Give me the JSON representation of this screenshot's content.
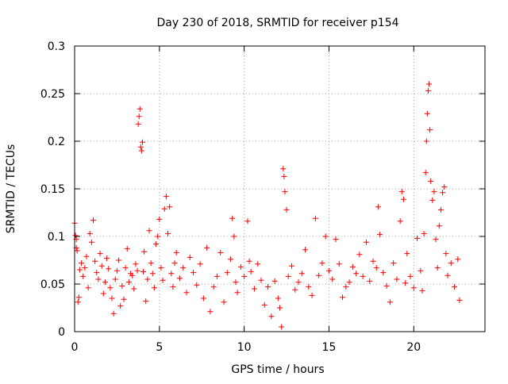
{
  "chart_data": {
    "type": "scatter",
    "title": "Day 230 of 2018, SRMTID for receiver p154",
    "xlabel": "GPS time / hours",
    "ylabel": "SRMTID / TECUs",
    "xlim": [
      0,
      24.2
    ],
    "ylim": [
      0,
      0.3
    ],
    "xticks": [
      0,
      5,
      10,
      15,
      20
    ],
    "xtick_labels": [
      "0",
      "5",
      "10",
      "15",
      "20"
    ],
    "yticks": [
      0,
      0.05,
      0.1,
      0.15,
      0.2,
      0.25,
      0.3
    ],
    "ytick_labels": [
      "0",
      "0.05",
      "0.1",
      "0.15",
      "0.2",
      "0.25",
      "0.3"
    ],
    "grid": true,
    "marker": "+",
    "series_color": "#ff0000",
    "series": [
      {
        "name": "SRMTID",
        "points": [
          [
            0.0,
            0.114
          ],
          [
            0.05,
            0.101
          ],
          [
            0.1,
            0.097
          ],
          [
            0.1,
            0.088
          ],
          [
            0.15,
            0.085
          ],
          [
            0.2,
            0.031
          ],
          [
            0.25,
            0.036
          ],
          [
            0.3,
            0.065
          ],
          [
            0.4,
            0.072
          ],
          [
            0.5,
            0.058
          ],
          [
            0.6,
            0.067
          ],
          [
            0.7,
            0.079
          ],
          [
            0.8,
            0.046
          ],
          [
            0.9,
            0.103
          ],
          [
            1.0,
            0.094
          ],
          [
            1.1,
            0.117
          ],
          [
            1.2,
            0.074
          ],
          [
            1.3,
            0.062
          ],
          [
            1.4,
            0.055
          ],
          [
            1.5,
            0.082
          ],
          [
            1.6,
            0.069
          ],
          [
            1.7,
            0.04
          ],
          [
            1.8,
            0.052
          ],
          [
            1.9,
            0.077
          ],
          [
            2.0,
            0.066
          ],
          [
            2.1,
            0.046
          ],
          [
            2.2,
            0.035
          ],
          [
            2.3,
            0.019
          ],
          [
            2.4,
            0.055
          ],
          [
            2.5,
            0.064
          ],
          [
            2.6,
            0.075
          ],
          [
            2.7,
            0.027
          ],
          [
            2.8,
            0.048
          ],
          [
            2.9,
            0.034
          ],
          [
            3.0,
            0.067
          ],
          [
            3.1,
            0.087
          ],
          [
            3.2,
            0.052
          ],
          [
            3.3,
            0.061
          ],
          [
            3.4,
            0.059
          ],
          [
            3.5,
            0.045
          ],
          [
            3.6,
            0.071
          ],
          [
            3.7,
            0.064
          ],
          [
            3.75,
            0.218
          ],
          [
            3.8,
            0.226
          ],
          [
            3.85,
            0.234
          ],
          [
            3.9,
            0.194
          ],
          [
            3.95,
            0.19
          ],
          [
            4.0,
            0.199
          ],
          [
            4.05,
            0.063
          ],
          [
            4.1,
            0.084
          ],
          [
            4.2,
            0.032
          ],
          [
            4.3,
            0.055
          ],
          [
            4.4,
            0.106
          ],
          [
            4.5,
            0.072
          ],
          [
            4.6,
            0.061
          ],
          [
            4.7,
            0.046
          ],
          [
            4.8,
            0.092
          ],
          [
            4.9,
            0.1
          ],
          [
            5.0,
            0.118
          ],
          [
            5.1,
            0.067
          ],
          [
            5.2,
            0.054
          ],
          [
            5.3,
            0.129
          ],
          [
            5.4,
            0.142
          ],
          [
            5.5,
            0.103
          ],
          [
            5.6,
            0.131
          ],
          [
            5.7,
            0.061
          ],
          [
            5.8,
            0.047
          ],
          [
            5.9,
            0.072
          ],
          [
            6.0,
            0.083
          ],
          [
            6.2,
            0.056
          ],
          [
            6.4,
            0.067
          ],
          [
            6.6,
            0.041
          ],
          [
            6.8,
            0.078
          ],
          [
            7.0,
            0.062
          ],
          [
            7.2,
            0.049
          ],
          [
            7.4,
            0.071
          ],
          [
            7.6,
            0.035
          ],
          [
            7.8,
            0.088
          ],
          [
            8.0,
            0.021
          ],
          [
            8.2,
            0.047
          ],
          [
            8.4,
            0.058
          ],
          [
            8.6,
            0.083
          ],
          [
            8.8,
            0.031
          ],
          [
            9.0,
            0.062
          ],
          [
            9.2,
            0.076
          ],
          [
            9.3,
            0.119
          ],
          [
            9.4,
            0.1
          ],
          [
            9.5,
            0.052
          ],
          [
            9.6,
            0.041
          ],
          [
            9.8,
            0.068
          ],
          [
            10.0,
            0.058
          ],
          [
            10.2,
            0.116
          ],
          [
            10.3,
            0.074
          ],
          [
            10.4,
            0.063
          ],
          [
            10.6,
            0.045
          ],
          [
            10.8,
            0.071
          ],
          [
            11.0,
            0.054
          ],
          [
            11.2,
            0.028
          ],
          [
            11.4,
            0.047
          ],
          [
            11.6,
            0.016
          ],
          [
            11.8,
            0.053
          ],
          [
            12.0,
            0.035
          ],
          [
            12.1,
            0.025
          ],
          [
            12.2,
            0.005
          ],
          [
            12.3,
            0.171
          ],
          [
            12.35,
            0.163
          ],
          [
            12.4,
            0.147
          ],
          [
            12.5,
            0.128
          ],
          [
            12.6,
            0.058
          ],
          [
            12.8,
            0.069
          ],
          [
            13.0,
            0.044
          ],
          [
            13.2,
            0.052
          ],
          [
            13.4,
            0.061
          ],
          [
            13.6,
            0.086
          ],
          [
            13.8,
            0.047
          ],
          [
            14.0,
            0.038
          ],
          [
            14.2,
            0.119
          ],
          [
            14.4,
            0.059
          ],
          [
            14.6,
            0.072
          ],
          [
            14.8,
            0.1
          ],
          [
            15.0,
            0.064
          ],
          [
            15.2,
            0.055
          ],
          [
            15.4,
            0.097
          ],
          [
            15.6,
            0.071
          ],
          [
            15.8,
            0.036
          ],
          [
            16.0,
            0.047
          ],
          [
            16.2,
            0.052
          ],
          [
            16.4,
            0.068
          ],
          [
            16.6,
            0.061
          ],
          [
            16.8,
            0.081
          ],
          [
            17.0,
            0.058
          ],
          [
            17.2,
            0.094
          ],
          [
            17.4,
            0.053
          ],
          [
            17.6,
            0.074
          ],
          [
            17.8,
            0.067
          ],
          [
            17.9,
            0.131
          ],
          [
            18.0,
            0.102
          ],
          [
            18.2,
            0.062
          ],
          [
            18.4,
            0.048
          ],
          [
            18.6,
            0.031
          ],
          [
            18.8,
            0.072
          ],
          [
            19.0,
            0.055
          ],
          [
            19.2,
            0.116
          ],
          [
            19.3,
            0.147
          ],
          [
            19.4,
            0.139
          ],
          [
            19.5,
            0.051
          ],
          [
            19.6,
            0.082
          ],
          [
            19.8,
            0.058
          ],
          [
            20.0,
            0.046
          ],
          [
            20.2,
            0.098
          ],
          [
            20.4,
            0.064
          ],
          [
            20.5,
            0.043
          ],
          [
            20.6,
            0.103
          ],
          [
            20.7,
            0.167
          ],
          [
            20.75,
            0.2
          ],
          [
            20.8,
            0.229
          ],
          [
            20.85,
            0.253
          ],
          [
            20.9,
            0.26
          ],
          [
            20.95,
            0.212
          ],
          [
            21.0,
            0.158
          ],
          [
            21.1,
            0.138
          ],
          [
            21.2,
            0.147
          ],
          [
            21.3,
            0.097
          ],
          [
            21.4,
            0.067
          ],
          [
            21.5,
            0.111
          ],
          [
            21.6,
            0.128
          ],
          [
            21.7,
            0.146
          ],
          [
            21.8,
            0.152
          ],
          [
            21.9,
            0.082
          ],
          [
            22.0,
            0.059
          ],
          [
            22.2,
            0.072
          ],
          [
            22.4,
            0.047
          ],
          [
            22.6,
            0.076
          ],
          [
            22.7,
            0.033
          ]
        ]
      }
    ]
  }
}
